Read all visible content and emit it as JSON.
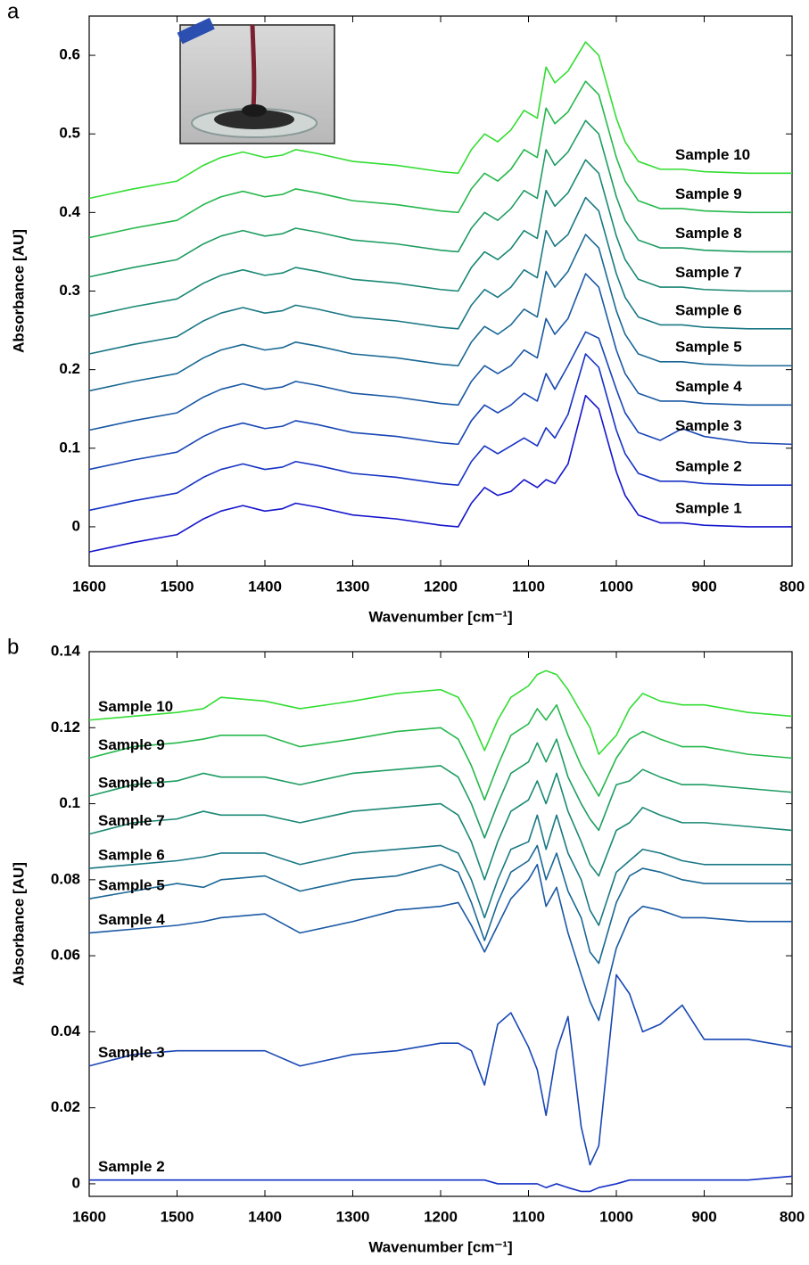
{
  "chart_data": [
    {
      "type": "line",
      "panel_label": "a",
      "x_label": "Wavenumber [cm⁻¹]",
      "y_label": "Absorbance [AU]",
      "xlim": [
        1600,
        800
      ],
      "xticks": [
        1600,
        1500,
        1400,
        1300,
        1200,
        1100,
        1000,
        900,
        800
      ],
      "ylim": [
        -0.05,
        0.65
      ],
      "yticks": [
        0,
        0.1,
        0.2,
        0.3,
        0.4,
        0.5,
        0.6
      ],
      "x": [
        1600,
        1550,
        1500,
        1470,
        1450,
        1425,
        1400,
        1380,
        1365,
        1340,
        1300,
        1250,
        1200,
        1180,
        1165,
        1150,
        1135,
        1120,
        1105,
        1090,
        1080,
        1070,
        1055,
        1035,
        1020,
        1000,
        990,
        975,
        950,
        925,
        900,
        850,
        800
      ],
      "series": [
        {
          "name": "Sample 1",
          "color": "#1414cc",
          "values": [
            -0.032,
            -0.02,
            -0.01,
            0.01,
            0.02,
            0.027,
            0.02,
            0.023,
            0.03,
            0.025,
            0.015,
            0.01,
            0.002,
            0,
            0.03,
            0.05,
            0.04,
            0.045,
            0.06,
            0.05,
            0.06,
            0.055,
            0.08,
            0.167,
            0.15,
            0.07,
            0.04,
            0.015,
            0.005,
            0.005,
            0.002,
            0,
            0
          ]
        },
        {
          "name": "Sample 2",
          "color": "#1632c4",
          "values": [
            0.021,
            0.033,
            0.043,
            0.063,
            0.073,
            0.08,
            0.073,
            0.076,
            0.083,
            0.078,
            0.068,
            0.063,
            0.055,
            0.053,
            0.083,
            0.103,
            0.093,
            0.103,
            0.113,
            0.103,
            0.126,
            0.113,
            0.143,
            0.22,
            0.203,
            0.123,
            0.093,
            0.068,
            0.058,
            0.058,
            0.055,
            0.053,
            0.053
          ]
        },
        {
          "name": "Sample 3",
          "color": "#1846b4",
          "values": [
            0.073,
            0.085,
            0.095,
            0.115,
            0.125,
            0.132,
            0.125,
            0.128,
            0.135,
            0.13,
            0.12,
            0.115,
            0.107,
            0.105,
            0.135,
            0.155,
            0.145,
            0.155,
            0.17,
            0.16,
            0.195,
            0.175,
            0.205,
            0.248,
            0.24,
            0.175,
            0.145,
            0.12,
            0.11,
            0.125,
            0.115,
            0.107,
            0.105
          ]
        },
        {
          "name": "Sample 4",
          "color": "#1a58a4",
          "values": [
            0.123,
            0.135,
            0.145,
            0.165,
            0.175,
            0.182,
            0.175,
            0.178,
            0.185,
            0.18,
            0.17,
            0.165,
            0.157,
            0.155,
            0.185,
            0.205,
            0.195,
            0.205,
            0.225,
            0.215,
            0.265,
            0.245,
            0.265,
            0.322,
            0.305,
            0.225,
            0.195,
            0.17,
            0.16,
            0.16,
            0.157,
            0.155,
            0.155
          ]
        },
        {
          "name": "Sample 5",
          "color": "#1a6894",
          "values": [
            0.173,
            0.185,
            0.195,
            0.215,
            0.225,
            0.232,
            0.225,
            0.228,
            0.235,
            0.23,
            0.22,
            0.215,
            0.207,
            0.205,
            0.235,
            0.255,
            0.245,
            0.257,
            0.277,
            0.267,
            0.325,
            0.305,
            0.325,
            0.372,
            0.355,
            0.275,
            0.245,
            0.22,
            0.21,
            0.21,
            0.207,
            0.205,
            0.205
          ]
        },
        {
          "name": "Sample 6",
          "color": "#1a7884",
          "values": [
            0.22,
            0.232,
            0.242,
            0.262,
            0.272,
            0.279,
            0.272,
            0.275,
            0.282,
            0.277,
            0.267,
            0.262,
            0.254,
            0.252,
            0.282,
            0.302,
            0.292,
            0.305,
            0.327,
            0.317,
            0.377,
            0.357,
            0.372,
            0.419,
            0.402,
            0.322,
            0.292,
            0.267,
            0.257,
            0.257,
            0.254,
            0.252,
            0.252
          ]
        },
        {
          "name": "Sample 7",
          "color": "#1a8874",
          "values": [
            0.268,
            0.28,
            0.29,
            0.31,
            0.32,
            0.327,
            0.32,
            0.323,
            0.33,
            0.325,
            0.315,
            0.31,
            0.302,
            0.3,
            0.33,
            0.35,
            0.34,
            0.354,
            0.377,
            0.367,
            0.428,
            0.408,
            0.425,
            0.467,
            0.45,
            0.37,
            0.34,
            0.315,
            0.305,
            0.305,
            0.302,
            0.3,
            0.3
          ]
        },
        {
          "name": "Sample 8",
          "color": "#1e9c62",
          "values": [
            0.318,
            0.33,
            0.34,
            0.36,
            0.37,
            0.377,
            0.37,
            0.373,
            0.38,
            0.375,
            0.365,
            0.36,
            0.352,
            0.35,
            0.38,
            0.4,
            0.39,
            0.405,
            0.428,
            0.418,
            0.48,
            0.46,
            0.477,
            0.517,
            0.5,
            0.42,
            0.39,
            0.365,
            0.355,
            0.355,
            0.352,
            0.35,
            0.35
          ]
        },
        {
          "name": "Sample 9",
          "color": "#26b84c",
          "values": [
            0.368,
            0.38,
            0.39,
            0.41,
            0.42,
            0.427,
            0.42,
            0.423,
            0.43,
            0.425,
            0.415,
            0.41,
            0.402,
            0.4,
            0.43,
            0.45,
            0.44,
            0.455,
            0.48,
            0.47,
            0.533,
            0.513,
            0.528,
            0.567,
            0.55,
            0.47,
            0.44,
            0.415,
            0.405,
            0.405,
            0.402,
            0.4,
            0.4
          ]
        },
        {
          "name": "Sample 10",
          "color": "#33dd33",
          "values": [
            0.418,
            0.43,
            0.44,
            0.46,
            0.47,
            0.477,
            0.47,
            0.473,
            0.48,
            0.475,
            0.465,
            0.46,
            0.452,
            0.45,
            0.48,
            0.5,
            0.49,
            0.505,
            0.53,
            0.52,
            0.585,
            0.565,
            0.58,
            0.617,
            0.6,
            0.52,
            0.49,
            0.465,
            0.455,
            0.455,
            0.452,
            0.45,
            0.45
          ]
        }
      ]
    },
    {
      "type": "line",
      "panel_label": "b",
      "x_label": "Wavenumber [cm⁻¹]",
      "y_label": "Absorbance [AU]",
      "xlim": [
        1600,
        800
      ],
      "xticks": [
        1600,
        1500,
        1400,
        1300,
        1200,
        1100,
        1000,
        900,
        800
      ],
      "ylim": [
        -0.0033,
        0.14
      ],
      "yticks": [
        0,
        0.02,
        0.04,
        0.06,
        0.08,
        0.1,
        0.12,
        0.14
      ],
      "x": [
        1600,
        1550,
        1500,
        1470,
        1450,
        1400,
        1360,
        1300,
        1250,
        1200,
        1180,
        1165,
        1150,
        1135,
        1120,
        1100,
        1090,
        1080,
        1068,
        1055,
        1040,
        1030,
        1020,
        1000,
        985,
        970,
        950,
        925,
        900,
        850,
        800
      ],
      "series": [
        {
          "name": "Sample 2",
          "color": "#1632c4",
          "values": [
            0.001,
            0.001,
            0.001,
            0.001,
            0.001,
            0.001,
            0.001,
            0.001,
            0.001,
            0.001,
            0.001,
            0.001,
            0.001,
            0,
            0,
            0,
            0,
            -0.001,
            0,
            -0.001,
            -0.002,
            -0.002,
            -0.001,
            0,
            0.001,
            0.001,
            0.001,
            0.001,
            0.001,
            0.001,
            0.002
          ]
        },
        {
          "name": "Sample 3",
          "color": "#1846b4",
          "values": [
            0.031,
            0.034,
            0.035,
            0.035,
            0.035,
            0.035,
            0.031,
            0.034,
            0.035,
            0.037,
            0.037,
            0.035,
            0.026,
            0.042,
            0.045,
            0.036,
            0.03,
            0.018,
            0.035,
            0.044,
            0.015,
            0.005,
            0.01,
            0.055,
            0.05,
            0.04,
            0.042,
            0.047,
            0.038,
            0.038,
            0.036
          ]
        },
        {
          "name": "Sample 4",
          "color": "#1a58a4",
          "values": [
            0.066,
            0.067,
            0.068,
            0.069,
            0.07,
            0.071,
            0.066,
            0.069,
            0.072,
            0.073,
            0.074,
            0.068,
            0.061,
            0.068,
            0.075,
            0.08,
            0.084,
            0.073,
            0.078,
            0.066,
            0.055,
            0.048,
            0.043,
            0.062,
            0.07,
            0.073,
            0.072,
            0.07,
            0.07,
            0.069,
            0.069
          ]
        },
        {
          "name": "Sample 5",
          "color": "#1a6894",
          "values": [
            0.075,
            0.077,
            0.079,
            0.078,
            0.08,
            0.081,
            0.077,
            0.08,
            0.081,
            0.084,
            0.082,
            0.074,
            0.064,
            0.074,
            0.082,
            0.085,
            0.089,
            0.08,
            0.087,
            0.077,
            0.07,
            0.061,
            0.058,
            0.074,
            0.081,
            0.083,
            0.082,
            0.08,
            0.079,
            0.079,
            0.079
          ]
        },
        {
          "name": "Sample 6",
          "color": "#1a7884",
          "values": [
            0.083,
            0.084,
            0.085,
            0.086,
            0.087,
            0.087,
            0.084,
            0.087,
            0.088,
            0.089,
            0.087,
            0.08,
            0.07,
            0.08,
            0.088,
            0.09,
            0.097,
            0.088,
            0.097,
            0.087,
            0.08,
            0.072,
            0.068,
            0.082,
            0.085,
            0.088,
            0.087,
            0.085,
            0.084,
            0.084,
            0.084
          ]
        },
        {
          "name": "Sample 7",
          "color": "#1a8874",
          "values": [
            0.092,
            0.095,
            0.096,
            0.098,
            0.097,
            0.097,
            0.095,
            0.098,
            0.099,
            0.1,
            0.097,
            0.09,
            0.08,
            0.09,
            0.098,
            0.101,
            0.106,
            0.1,
            0.108,
            0.098,
            0.09,
            0.084,
            0.081,
            0.093,
            0.095,
            0.099,
            0.097,
            0.095,
            0.095,
            0.094,
            0.093
          ]
        },
        {
          "name": "Sample 8",
          "color": "#1e9c62",
          "values": [
            0.102,
            0.105,
            0.106,
            0.108,
            0.107,
            0.107,
            0.105,
            0.108,
            0.109,
            0.11,
            0.107,
            0.1,
            0.091,
            0.1,
            0.108,
            0.111,
            0.116,
            0.111,
            0.117,
            0.107,
            0.1,
            0.096,
            0.093,
            0.105,
            0.106,
            0.109,
            0.107,
            0.105,
            0.105,
            0.104,
            0.103
          ]
        },
        {
          "name": "Sample 9",
          "color": "#26b84c",
          "values": [
            0.112,
            0.115,
            0.116,
            0.117,
            0.118,
            0.118,
            0.115,
            0.117,
            0.119,
            0.12,
            0.117,
            0.11,
            0.101,
            0.11,
            0.118,
            0.121,
            0.125,
            0.122,
            0.126,
            0.118,
            0.11,
            0.106,
            0.102,
            0.112,
            0.117,
            0.119,
            0.117,
            0.115,
            0.115,
            0.113,
            0.112
          ]
        },
        {
          "name": "Sample 10",
          "color": "#33dd33",
          "values": [
            0.122,
            0.123,
            0.124,
            0.125,
            0.128,
            0.127,
            0.125,
            0.127,
            0.129,
            0.13,
            0.128,
            0.122,
            0.114,
            0.122,
            0.128,
            0.131,
            0.134,
            0.135,
            0.134,
            0.13,
            0.124,
            0.12,
            0.113,
            0.118,
            0.125,
            0.129,
            0.127,
            0.126,
            0.126,
            0.124,
            0.123
          ]
        }
      ]
    }
  ]
}
